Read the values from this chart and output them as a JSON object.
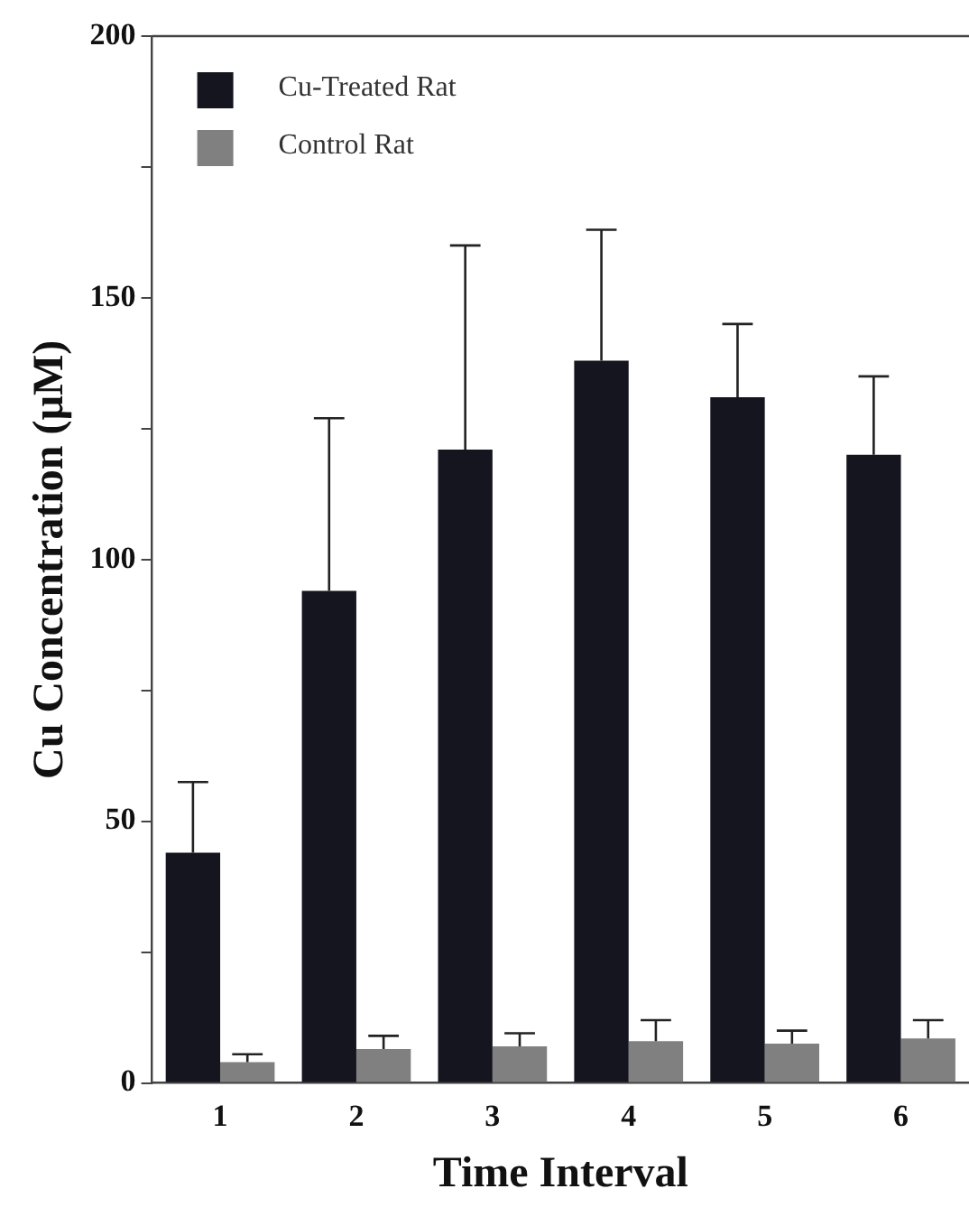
{
  "chart_data": {
    "type": "bar",
    "xlabel": "Time Interval",
    "ylabel": "Cu Concentration (µM)",
    "categories": [
      "1",
      "2",
      "3",
      "4",
      "5",
      "6"
    ],
    "series": [
      {
        "name": "Cu-Treated Rat",
        "color": "#151520",
        "values": [
          44,
          94,
          121,
          138,
          131,
          120
        ],
        "errors": [
          [
            44,
            57.5
          ],
          [
            94,
            127
          ],
          [
            121,
            160
          ],
          [
            138,
            163
          ],
          [
            131,
            145
          ],
          [
            120,
            135
          ]
        ]
      },
      {
        "name": "Control Rat",
        "color": "#808080",
        "values": [
          4,
          6.5,
          7,
          8,
          7.5,
          8.5
        ],
        "errors": [
          [
            4,
            5.5
          ],
          [
            6.5,
            9
          ],
          [
            7,
            9.5
          ],
          [
            8,
            12
          ],
          [
            7.5,
            10
          ],
          [
            8.5,
            12
          ]
        ]
      }
    ],
    "ylim": [
      0,
      200
    ],
    "yticks": [
      0,
      {
        "value": 25,
        "label": null
      },
      50,
      {
        "value": 75,
        "label": null
      },
      100,
      {
        "value": 125,
        "label": null
      },
      150,
      {
        "value": 175,
        "label": null
      },
      200
    ],
    "grid": false,
    "legend": "top left"
  }
}
